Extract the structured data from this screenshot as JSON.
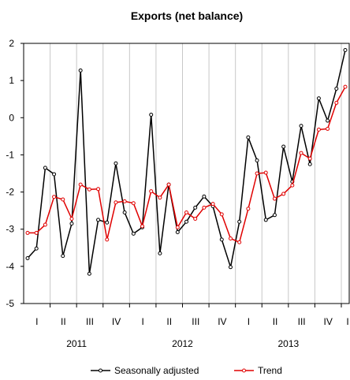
{
  "chart_data": {
    "type": "line",
    "title": "Exports (net balance)",
    "xlabel": "",
    "ylabel": "",
    "ylim": [
      -5,
      2
    ],
    "yticks": [
      2,
      1,
      0,
      -1,
      -2,
      -3,
      -4,
      -5
    ],
    "grid": "vertical",
    "legend_position": "bottom",
    "quarter_labels": [
      "I",
      "II",
      "III",
      "IV",
      "I",
      "II",
      "III",
      "IV",
      "I",
      "II",
      "III",
      "IV",
      "I"
    ],
    "year_labels": [
      "2011",
      "2012",
      "2013"
    ],
    "series": [
      {
        "name": "Seasonally adjusted",
        "color": "#000000",
        "values": [
          -3.78,
          -3.52,
          -1.35,
          -1.52,
          -3.72,
          -2.85,
          1.27,
          -4.2,
          -2.75,
          -2.82,
          -1.23,
          -2.55,
          -3.12,
          -2.95,
          0.08,
          -3.65,
          -1.8,
          -3.08,
          -2.8,
          -2.42,
          -2.12,
          -2.38,
          -3.28,
          -4.02,
          -2.8,
          -0.53,
          -1.15,
          -2.75,
          -2.62,
          -0.78,
          -1.72,
          -0.22,
          -1.25,
          0.52,
          -0.08,
          0.78,
          1.82
        ]
      },
      {
        "name": "Trend",
        "color": "#e00000",
        "values": [
          -3.1,
          -3.1,
          -2.88,
          -2.13,
          -2.2,
          -2.72,
          -1.8,
          -1.93,
          -1.92,
          -3.28,
          -2.28,
          -2.25,
          -2.3,
          -2.92,
          -1.98,
          -2.15,
          -1.8,
          -2.95,
          -2.55,
          -2.72,
          -2.42,
          -2.32,
          -2.6,
          -3.25,
          -3.35,
          -2.45,
          -1.5,
          -1.48,
          -2.18,
          -2.05,
          -1.82,
          -0.95,
          -1.1,
          -0.32,
          -0.3,
          0.4,
          0.83
        ]
      }
    ]
  }
}
